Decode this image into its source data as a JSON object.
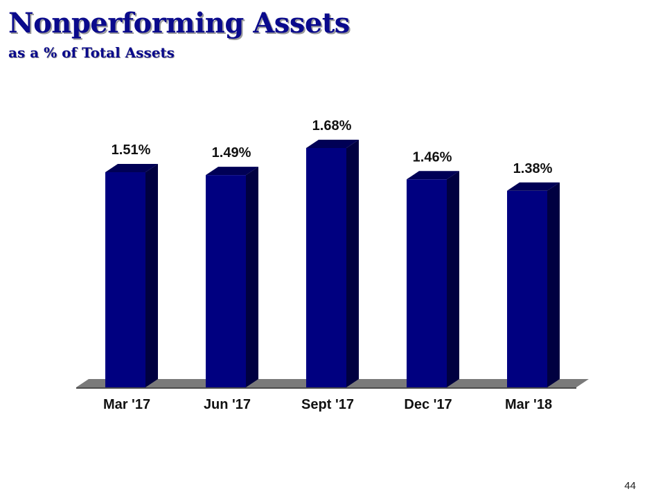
{
  "title": "Nonperforming Assets",
  "subtitle": "as a % of Total Assets",
  "page_number": "44",
  "colors": {
    "title": "#0a0a8c",
    "bar_front": "#000080",
    "bar_side": "#000040",
    "bar_top": "#000055",
    "floor": "#7a7a7a"
  },
  "chart_data": {
    "type": "bar",
    "categories": [
      "Mar '17",
      "Jun '17",
      "Sept '17",
      "Dec '17",
      "Mar '18"
    ],
    "values": [
      1.51,
      1.49,
      1.68,
      1.46,
      1.38
    ],
    "data_labels": [
      "1.51%",
      "1.49%",
      "1.68%",
      "1.46%",
      "1.38%"
    ],
    "unit": "%",
    "ylim": [
      0,
      1.75
    ],
    "grid": false,
    "legend": "none",
    "style": "3d-column"
  }
}
